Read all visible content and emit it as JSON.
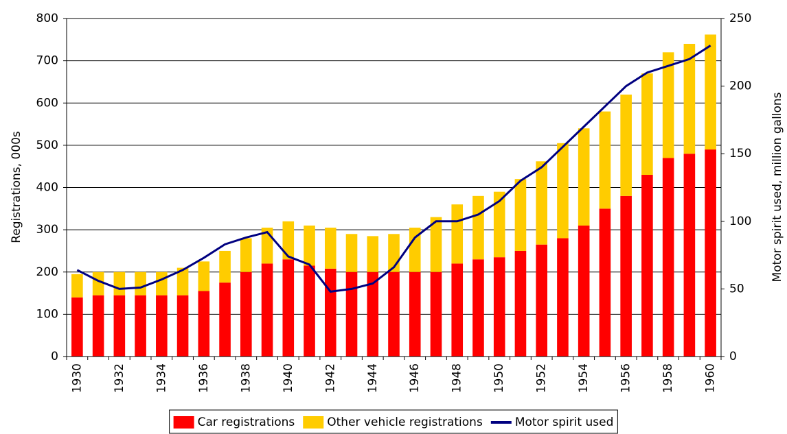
{
  "chart_data": {
    "type": "bar",
    "stacked": true,
    "grid": true,
    "categories": [
      "1930",
      null,
      "1932",
      null,
      "1934",
      null,
      "1936",
      null,
      "1938",
      null,
      "1940",
      null,
      "1942",
      null,
      "1944",
      null,
      "1946",
      null,
      "1948",
      null,
      "1950",
      null,
      "1952",
      null,
      "1954",
      null,
      "1956",
      null,
      "1958",
      null,
      "1960"
    ],
    "series": [
      {
        "name": "Car registrations",
        "type": "bar",
        "color": "#ff0000",
        "values": [
          140,
          145,
          145,
          145,
          145,
          145,
          155,
          175,
          200,
          220,
          230,
          215,
          208,
          200,
          200,
          200,
          200,
          200,
          220,
          230,
          235,
          250,
          265,
          280,
          310,
          350,
          380,
          430,
          470,
          480,
          490
        ]
      },
      {
        "name": "Other vehicle registrations",
        "type": "bar",
        "color": "#ffcc00",
        "values": [
          55,
          55,
          55,
          55,
          55,
          65,
          70,
          75,
          80,
          85,
          90,
          95,
          97,
          90,
          85,
          90,
          105,
          130,
          140,
          150,
          155,
          170,
          197,
          225,
          230,
          230,
          240,
          240,
          250,
          260,
          272
        ]
      },
      {
        "name": "Motor spirit used",
        "type": "line",
        "axis": "y2",
        "color": "#000080",
        "values": [
          64,
          56,
          50,
          51,
          57,
          64,
          73,
          83,
          88,
          92,
          74,
          68,
          48,
          50,
          54,
          66,
          88,
          100,
          100,
          105,
          115,
          130,
          140,
          155,
          170,
          185,
          200,
          210,
          215,
          220,
          230
        ]
      }
    ],
    "y_label": "Registrations, 000s",
    "y2_label": "Motor spirit used, million gallons",
    "ylim": [
      0,
      800
    ],
    "yticks": [
      0,
      100,
      200,
      300,
      400,
      500,
      600,
      700,
      800
    ],
    "y2lim": [
      0,
      250
    ],
    "y2ticks": [
      0,
      50,
      100,
      150,
      200,
      250
    ],
    "legend": "bottom"
  }
}
